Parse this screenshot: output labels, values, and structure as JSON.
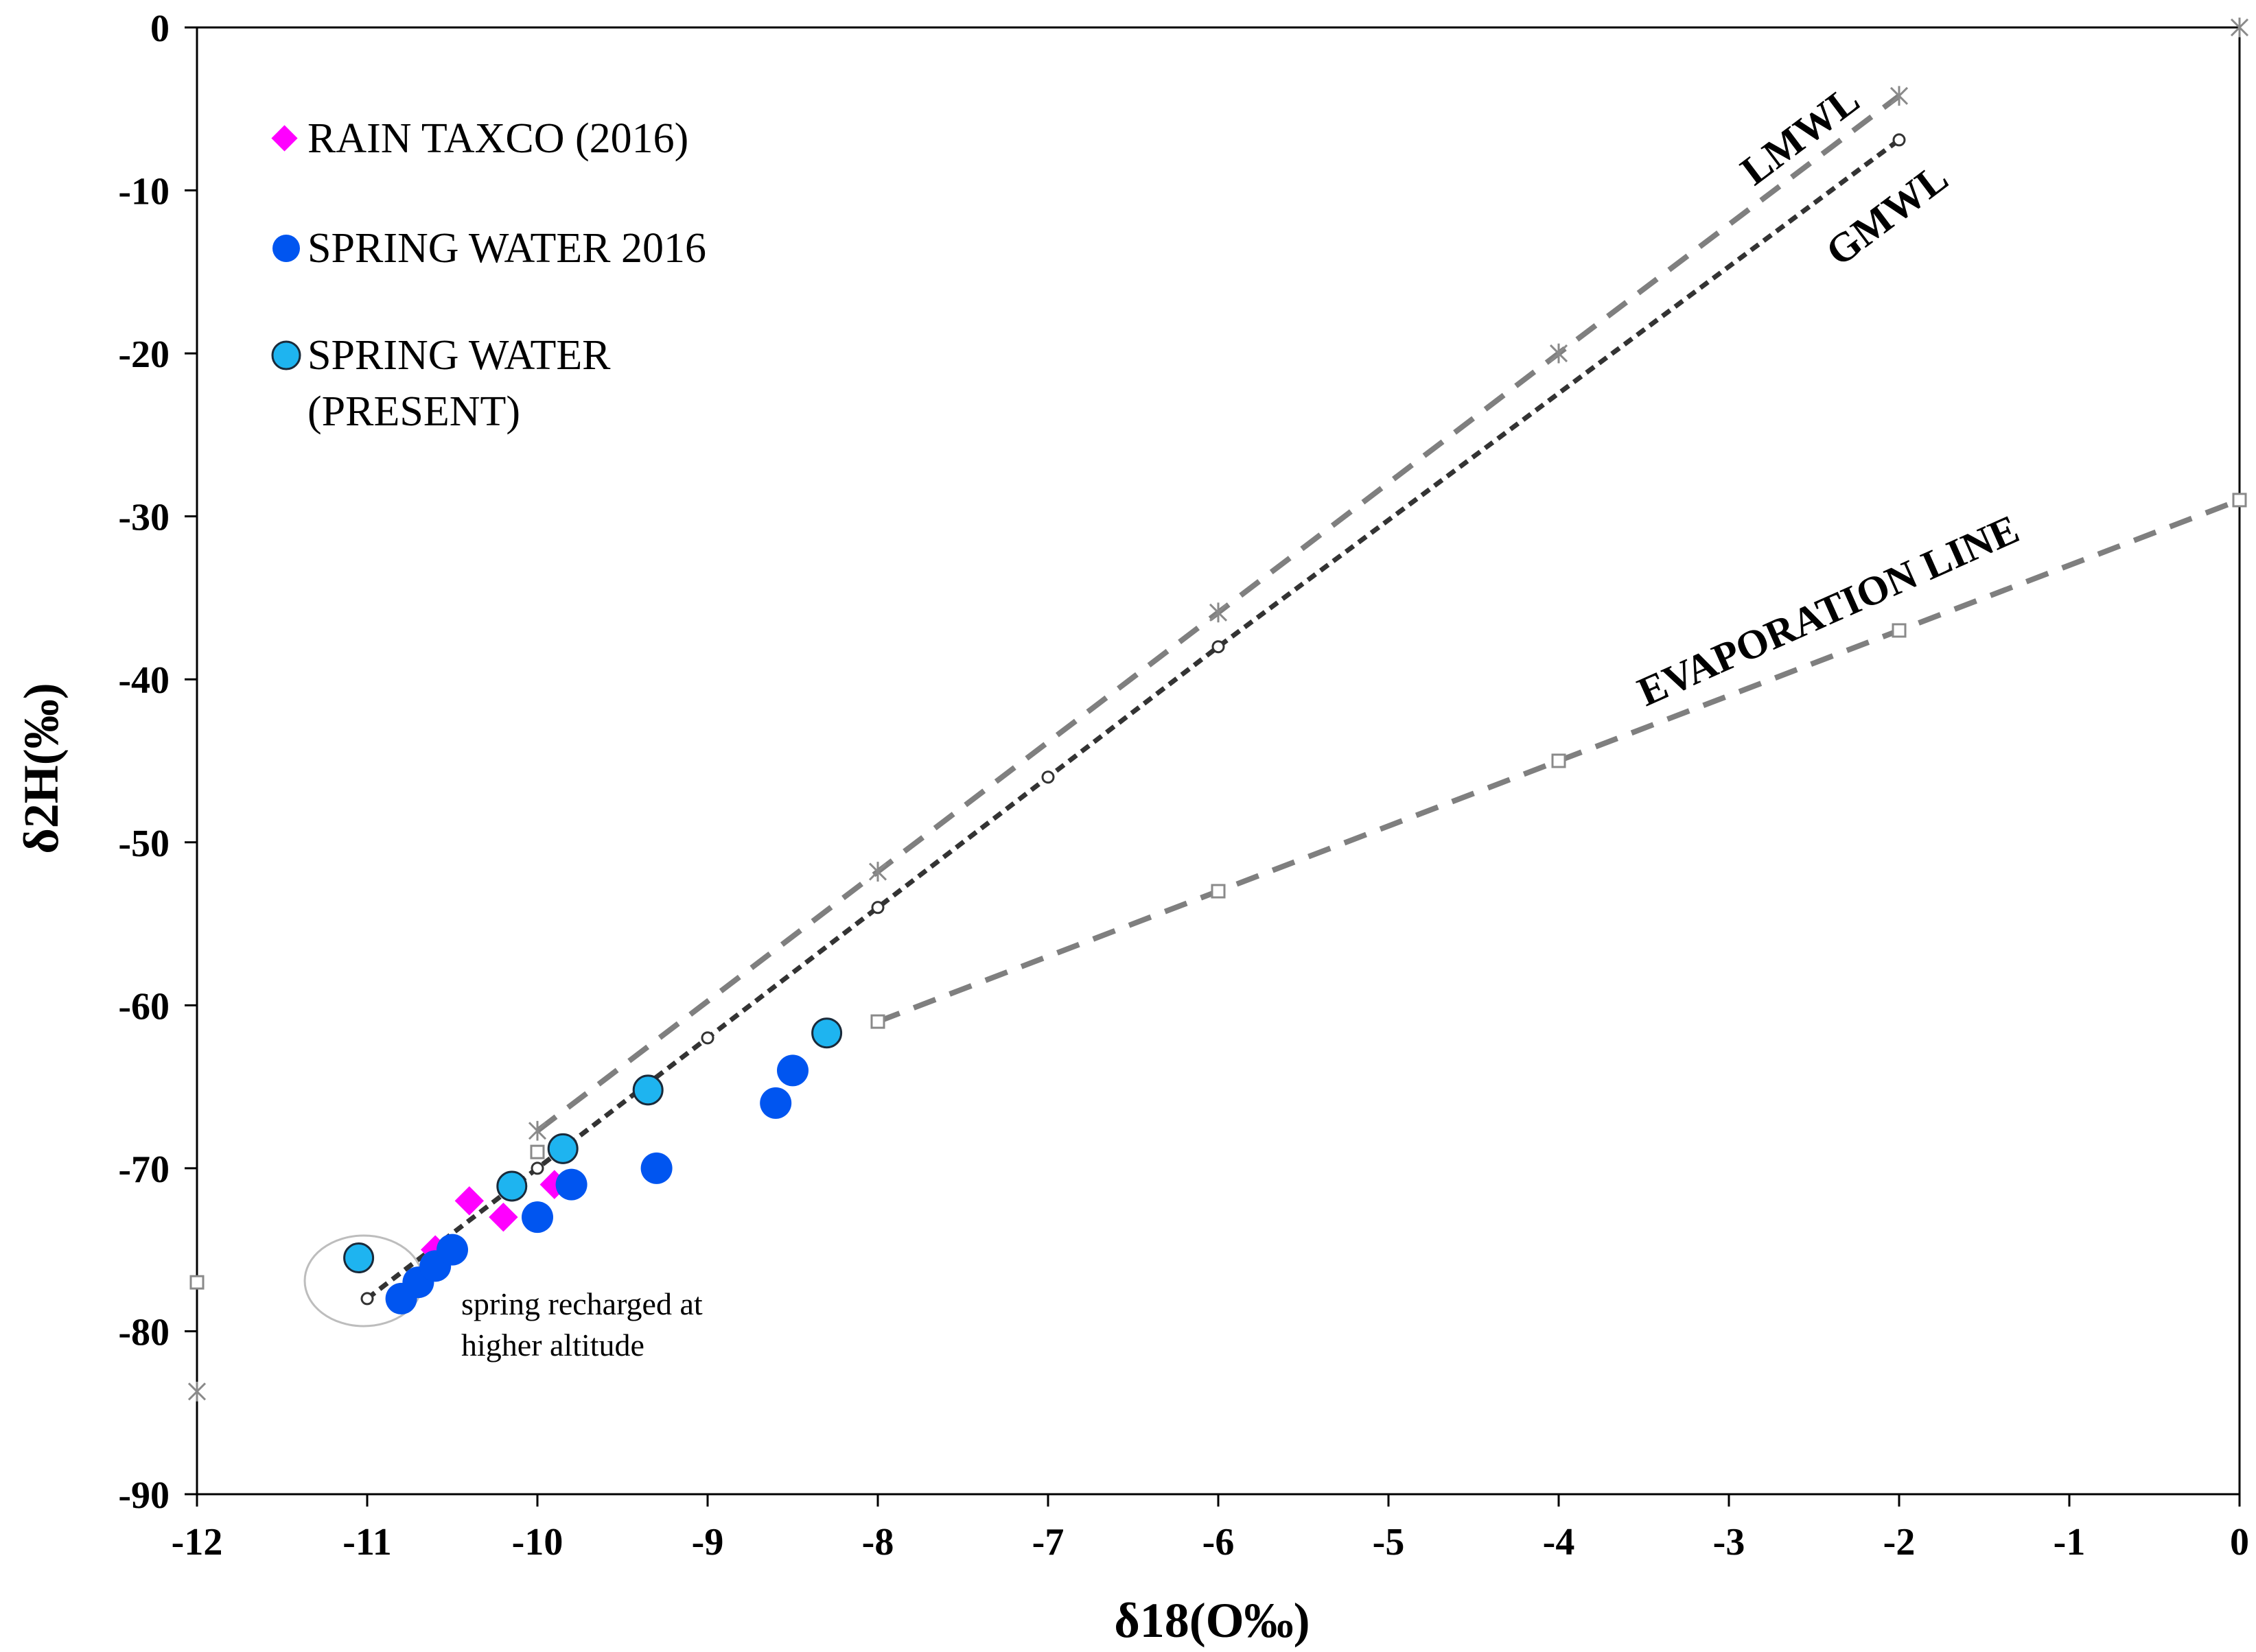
{
  "chart_data": {
    "type": "scatter",
    "xlabel": "δ18(O‰)",
    "ylabel": "δ2H(‰)",
    "xlim": [
      -12,
      0
    ],
    "ylim": [
      -90,
      0
    ],
    "x_ticks": [
      "-12",
      "-11",
      "-10",
      "-9",
      "-8",
      "-7",
      "-6",
      "-5",
      "-4",
      "-3",
      "-2",
      "-1",
      "0"
    ],
    "y_ticks": [
      "0",
      "-10",
      "-20",
      "-30",
      "-40",
      "-50",
      "-60",
      "-70",
      "-80",
      "-90"
    ],
    "legend_position": "top-left",
    "series": [
      {
        "name": "RAIN TAXCO (2016)",
        "marker": "diamond",
        "color": "#FF00FF",
        "points": [
          [
            -10.4,
            -72
          ],
          [
            -10.2,
            -73
          ],
          [
            -9.9,
            -71
          ],
          [
            -10.6,
            -75
          ]
        ]
      },
      {
        "name": "SPRING WATER 2016",
        "marker": "circle",
        "color": "#0055F0",
        "points": [
          [
            -10.8,
            -78
          ],
          [
            -10.7,
            -77
          ],
          [
            -10.6,
            -76
          ],
          [
            -10.5,
            -75
          ],
          [
            -10.0,
            -73
          ],
          [
            -9.8,
            -71
          ],
          [
            -9.3,
            -70
          ],
          [
            -8.6,
            -66
          ],
          [
            -8.5,
            -64
          ]
        ]
      },
      {
        "name": "SPRING WATER (PRESENT)",
        "name_lines": [
          "SPRING WATER",
          "(PRESENT)"
        ],
        "marker": "circle-outlined",
        "color": "#1EB4F0",
        "points": [
          [
            -11.05,
            -75.5
          ],
          [
            -10.15,
            -71.1
          ],
          [
            -9.85,
            -68.8
          ],
          [
            -9.35,
            -65.2
          ],
          [
            -8.3,
            -61.7
          ]
        ]
      }
    ],
    "lines": [
      {
        "name": "LMWL",
        "label": "LMWL",
        "style": "dashed",
        "color": "#7F7F7F",
        "marker": "star",
        "points": [
          [
            -12,
            -83.7
          ],
          [
            -10,
            -67.7
          ],
          [
            -8,
            -51.8
          ],
          [
            -6,
            -35.9
          ],
          [
            -4,
            -20.0
          ],
          [
            -2,
            -4.2
          ],
          [
            0,
            0
          ]
        ]
      },
      {
        "name": "GMWL",
        "label": "GMWL",
        "style": "dotted",
        "color": "#333333",
        "marker": "open-circle",
        "points": [
          [
            -11,
            -78
          ],
          [
            -10,
            -70
          ],
          [
            -9,
            -62
          ],
          [
            -8,
            -54
          ],
          [
            -7,
            -46
          ],
          [
            -6,
            -38
          ],
          [
            -2,
            -6.9
          ]
        ]
      },
      {
        "name": "EVAPORATION LINE",
        "label": "EVAPORATION LINE",
        "style": "dashed",
        "color": "#7F7F7F",
        "marker": "open-square",
        "points": [
          [
            -12,
            -77
          ],
          [
            -10,
            -69
          ],
          [
            -8,
            -61
          ],
          [
            -6,
            -53
          ],
          [
            -4,
            -45
          ],
          [
            -2,
            -37
          ],
          [
            0,
            -29
          ]
        ]
      }
    ],
    "annotations": [
      {
        "text_lines": [
          "spring recharged at",
          "higher altitude"
        ],
        "target": "ellipse around lowest δ values near (-10.8, -77)"
      }
    ]
  }
}
